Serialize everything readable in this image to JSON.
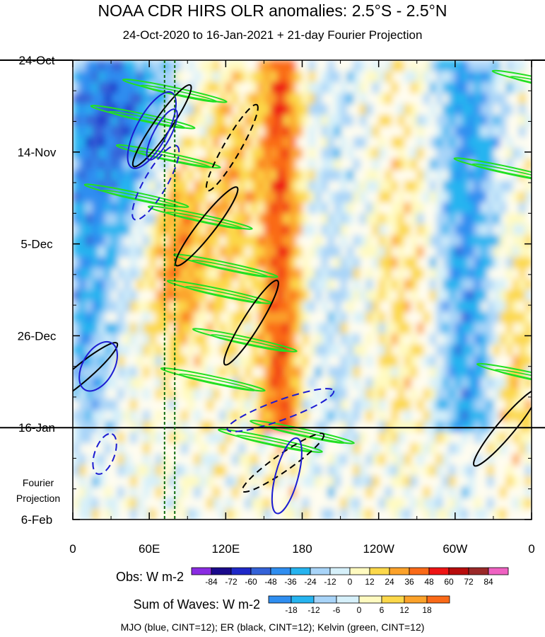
{
  "chart_data": {
    "type": "heatmap",
    "title": "NOAA CDR HIRS OLR anomalies: 2.5°S - 2.5°N",
    "subtitle": "24-Oct-2020 to 16-Jan-2021 + 21-day Fourier Projection",
    "x_ticks": [
      "0",
      "60E",
      "120E",
      "180",
      "120W",
      "60W",
      "0"
    ],
    "x_tick_lon": [
      0,
      60,
      120,
      180,
      240,
      300,
      360
    ],
    "xlim": [
      0,
      360
    ],
    "y_ticks": [
      "24-Oct",
      "14-Nov",
      "5-Dec",
      "26-Dec",
      "16-Jan",
      "6-Feb"
    ],
    "y_tick_day": [
      0,
      21,
      42,
      63,
      84,
      105
    ],
    "ylim": [
      0,
      105
    ],
    "projection_start_day": 84,
    "projection_label": [
      "Fourier",
      "Projection"
    ],
    "mjo_phase_lines_lon": [
      72,
      80
    ],
    "obs_colorbar": {
      "title": "Obs: W m-2",
      "levels": [
        "-84",
        "-72",
        "-60",
        "-48",
        "-36",
        "-24",
        "-12",
        "0",
        "12",
        "24",
        "36",
        "48",
        "60",
        "72",
        "84"
      ],
      "colors": [
        "#8a2be2",
        "#1a0a8c",
        "#1f28c8",
        "#3462d8",
        "#2f8ef0",
        "#26b4f0",
        "#a8d4f8",
        "#d6f0fa",
        "#fffac0",
        "#fcd84a",
        "#fca22a",
        "#fa6a18",
        "#ee1414",
        "#b80c0c",
        "#9a2828",
        "#ef62c2"
      ]
    },
    "wave_colorbar": {
      "title": "Sum of Waves: W m-2",
      "levels": [
        "-18",
        "-12",
        "-6",
        "0",
        "6",
        "12",
        "18"
      ],
      "colors": [
        "#2f8ef0",
        "#26b4f0",
        "#a8d4f8",
        "#d6f0fa",
        "#fffac0",
        "#fcd84a",
        "#fca22a",
        "#fa6a18"
      ]
    },
    "legend_text": "MJO (blue, CINT=12); ER (black, CINT=12); Kelvin (green, CINT=12)",
    "wave_colors": {
      "mjo": "#1c1cd2",
      "er": "#000000",
      "kelvin": "#22e022"
    },
    "anomaly_bands": [
      {
        "name": "dateline-positive",
        "lon": [
          152,
          178
        ],
        "day": [
          5,
          84
        ],
        "sign": "positive",
        "strength": 48
      },
      {
        "name": "central-pacific-suppressed",
        "lon": [
          180,
          230
        ],
        "day": [
          0,
          105
        ],
        "sign": "weak-negative",
        "strength": -8
      },
      {
        "name": "indian-ocean-convection",
        "lon": [
          0,
          60
        ],
        "day": [
          0,
          40
        ],
        "sign": "negative",
        "strength": -48
      },
      {
        "name": "atlantic-convection",
        "lon": [
          290,
          330
        ],
        "day": [
          0,
          84
        ],
        "sign": "negative",
        "strength": -36
      },
      {
        "name": "maritime-continent-positive",
        "lon": [
          60,
          90
        ],
        "day": [
          25,
          60
        ],
        "sign": "positive",
        "strength": 36
      }
    ]
  }
}
